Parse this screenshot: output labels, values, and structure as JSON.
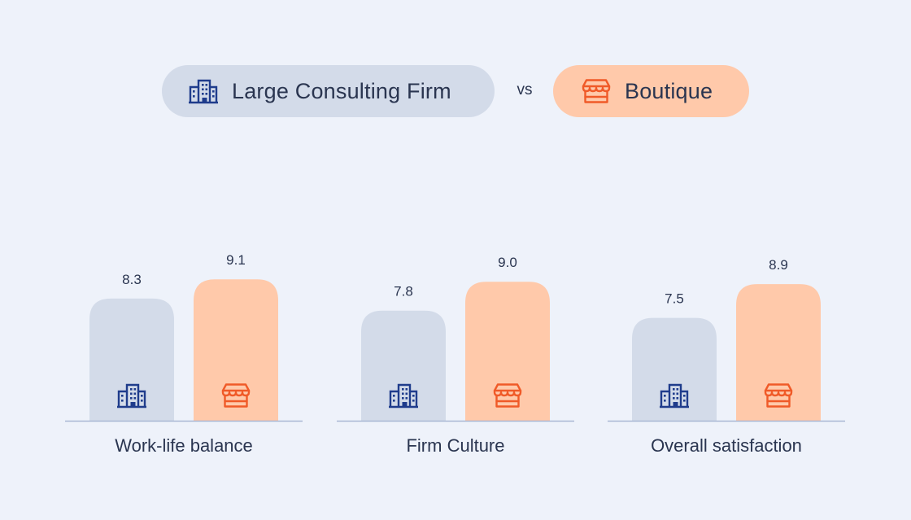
{
  "legend": {
    "large_label": "Large Consulting Firm",
    "boutique_label": "Boutique",
    "vs_label": "vs",
    "large_icon": "office-building-icon",
    "boutique_icon": "storefront-icon"
  },
  "colors": {
    "background": "#EEF2FA",
    "large_bar": "#D3DBE9",
    "boutique_bar": "#FFC9AA",
    "large_icon": "#1F3C8C",
    "boutique_icon": "#F05A28",
    "baseline": "#A9B7D4",
    "text": "#2A3550"
  },
  "chart_data": {
    "type": "bar",
    "categories": [
      "Work-life balance",
      "Firm Culture",
      "Overall satisfaction"
    ],
    "series": [
      {
        "name": "Large Consulting Firm",
        "values": [
          8.3,
          7.8,
          7.5
        ],
        "labels": [
          "8.3",
          "7.8",
          "7.5"
        ]
      },
      {
        "name": "Boutique",
        "values": [
          9.1,
          9.0,
          8.9
        ],
        "labels": [
          "9.1",
          "9.0",
          "8.9"
        ]
      }
    ],
    "title": "",
    "xlabel": "",
    "ylabel": "",
    "grid": false,
    "legend_position": "top-center"
  }
}
